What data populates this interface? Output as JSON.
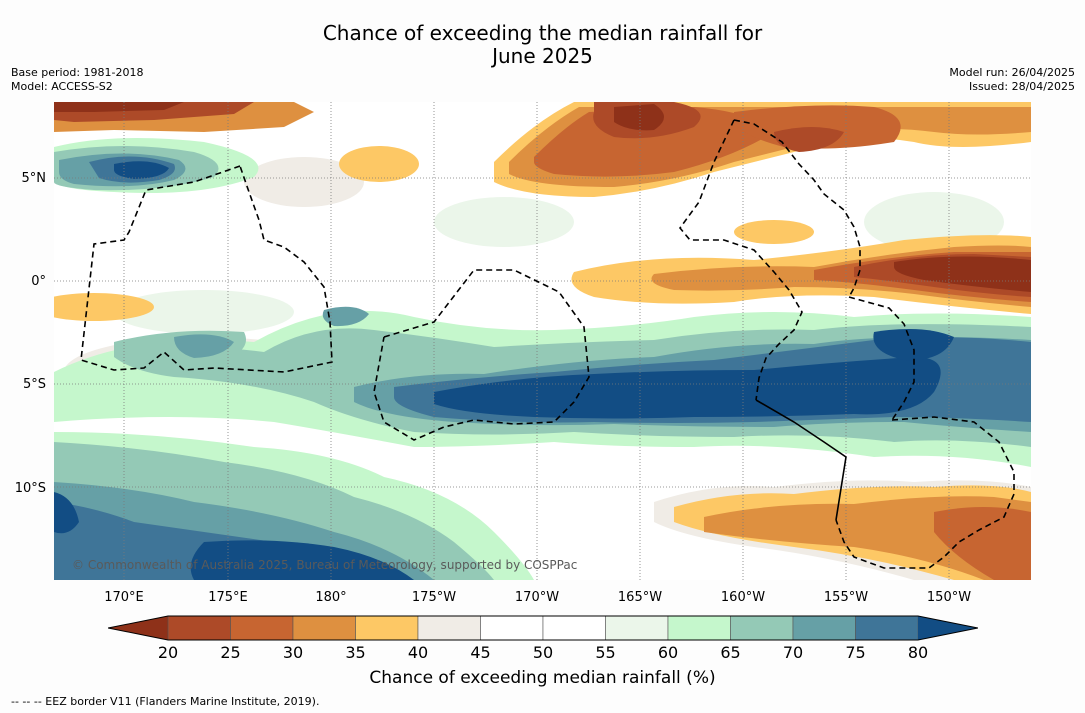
{
  "title_line1": "Chance of exceeding the median rainfall for",
  "title_line2": "June 2025",
  "base_period": "Base period: 1981-2018",
  "model": "Model: ACCESS-S2",
  "model_run": "Model run: 26/04/2025",
  "issued": "Issued: 28/04/2025",
  "lat_labels": [
    "5°N",
    "0°",
    "5°S",
    "10°S"
  ],
  "lon_labels": [
    "170°E",
    "175°E",
    "180°",
    "175°W",
    "170°W",
    "165°W",
    "160°W",
    "155°W",
    "150°W"
  ],
  "copyright": "© Commonwealth of Australia 2025, Bureau of Meteorology, supported by COSPPac",
  "colorbar": {
    "ticks": [
      "20",
      "25",
      "30",
      "35",
      "40",
      "45",
      "50",
      "55",
      "60",
      "65",
      "70",
      "75",
      "80"
    ],
    "label": "Chance of exceeding median rainfall (%)",
    "colors": [
      "#8e3119",
      "#ad4a28",
      "#c76531",
      "#de9040",
      "#fdc865",
      "#f0ece6",
      "#ffffff",
      "#ffffff",
      "#ebf6ea",
      "#c5f7cc",
      "#94c9b6",
      "#66a0a6",
      "#3f7598",
      "#124d84"
    ]
  },
  "footer": "-- -- -- EEZ border V11 (Flanders Marine Institute, 2019)."
}
